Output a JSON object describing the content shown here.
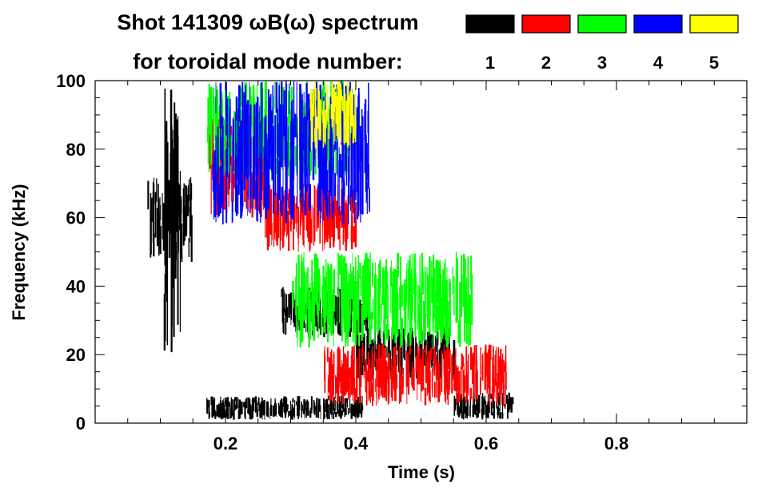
{
  "chart_data": {
    "type": "heatmap",
    "title_line1": "Shot 141309 ωB(ω) spectrum",
    "title_line2": "for toroidal mode number:",
    "xlabel": "Time (s)",
    "ylabel": "Frequency (kHz)",
    "xlim": [
      0.0,
      1.0
    ],
    "ylim": [
      0,
      100
    ],
    "xticks": [
      0.2,
      0.4,
      0.6,
      0.8
    ],
    "xtick_labels": [
      "0.2",
      "0.4",
      "0.6",
      "0.8"
    ],
    "yticks": [
      0,
      20,
      40,
      60,
      80,
      100
    ],
    "ytick_labels": [
      "0",
      "20",
      "40",
      "60",
      "80",
      "100"
    ],
    "legend": [
      {
        "label": "1",
        "color": "#000000"
      },
      {
        "label": "2",
        "color": "#ff0000"
      },
      {
        "label": "3",
        "color": "#00ff00"
      },
      {
        "label": "4",
        "color": "#0000ff"
      },
      {
        "label": "5",
        "color": "#ffff00"
      }
    ],
    "series": [
      {
        "name": "n=1",
        "color": "#000000",
        "regions": [
          {
            "t0": 0.08,
            "t1": 0.15,
            "f0": 47,
            "f1": 72
          },
          {
            "t0": 0.105,
            "t1": 0.13,
            "f0": 20,
            "f1": 100
          },
          {
            "t0": 0.285,
            "t1": 0.42,
            "f0": 25,
            "f1": 40
          },
          {
            "t0": 0.4,
            "t1": 0.55,
            "f0": 12,
            "f1": 28
          },
          {
            "t0": 0.17,
            "t1": 0.41,
            "f0": 1,
            "f1": 8
          },
          {
            "t0": 0.55,
            "t1": 0.64,
            "f0": 1,
            "f1": 9
          }
        ]
      },
      {
        "name": "n=2",
        "color": "#ff0000",
        "regions": [
          {
            "t0": 0.175,
            "t1": 0.26,
            "f0": 60,
            "f1": 90
          },
          {
            "t0": 0.26,
            "t1": 0.4,
            "f0": 50,
            "f1": 70
          },
          {
            "t0": 0.35,
            "t1": 0.63,
            "f0": 5,
            "f1": 23
          }
        ]
      },
      {
        "name": "n=3",
        "color": "#00ff00",
        "regions": [
          {
            "t0": 0.17,
            "t1": 0.4,
            "f0": 72,
            "f1": 100
          },
          {
            "t0": 0.3,
            "t1": 0.58,
            "f0": 22,
            "f1": 50
          }
        ]
      },
      {
        "name": "n=4",
        "color": "#0000ff",
        "regions": [
          {
            "t0": 0.18,
            "t1": 0.42,
            "f0": 58,
            "f1": 100
          }
        ]
      },
      {
        "name": "n=5",
        "color": "#ffff00",
        "regions": [
          {
            "t0": 0.33,
            "t1": 0.4,
            "f0": 80,
            "f1": 100
          }
        ]
      }
    ]
  }
}
